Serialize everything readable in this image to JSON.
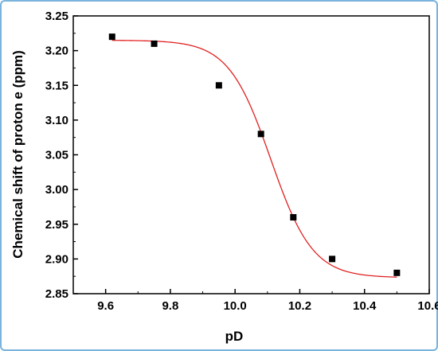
{
  "chart_data": {
    "type": "scatter",
    "title": "",
    "xlabel": "pD",
    "ylabel": "Chemical shift of proton e (ppm)",
    "xlim": [
      9.5,
      10.6
    ],
    "ylim": [
      2.85,
      3.25
    ],
    "x_ticks": [
      "9.6",
      "9.8",
      "10.0",
      "10.2",
      "10.4",
      "10.6"
    ],
    "y_ticks": [
      "2.85",
      "2.90",
      "2.95",
      "3.00",
      "3.05",
      "3.10",
      "3.15",
      "3.20",
      "3.25"
    ],
    "grid": false,
    "legend": "none",
    "series": [
      {
        "marker": "square",
        "color": "#000000",
        "points": [
          {
            "x": 9.62,
            "y": 3.22
          },
          {
            "x": 9.75,
            "y": 3.21
          },
          {
            "x": 9.95,
            "y": 3.15
          },
          {
            "x": 10.08,
            "y": 3.08
          },
          {
            "x": 10.18,
            "y": 2.96
          },
          {
            "x": 10.3,
            "y": 2.9
          },
          {
            "x": 10.5,
            "y": 2.88
          }
        ]
      }
    ],
    "fit_curve": {
      "type": "sigmoidal",
      "color": "#e02020",
      "upper": 3.215,
      "lower": 2.873,
      "midpoint": 10.11,
      "slope": 0.065,
      "x_range": [
        9.62,
        10.5
      ]
    }
  }
}
